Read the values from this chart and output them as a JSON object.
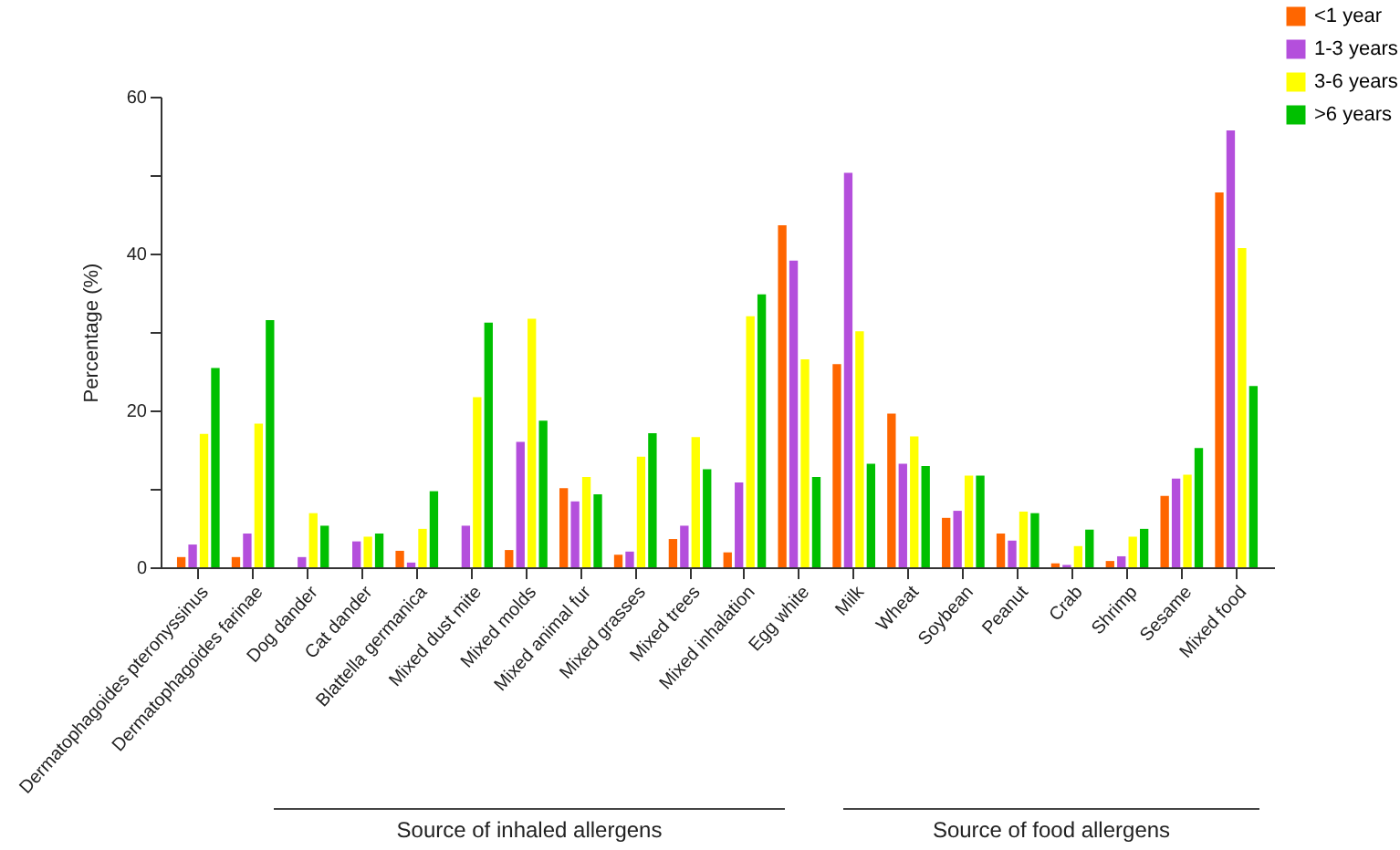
{
  "chart_data": {
    "type": "bar",
    "ylabel": "Percentage (%)",
    "categories": [
      "Dermatophagoides pteronyssinus",
      "Dermatophagoides farinae",
      "Dog dander",
      "Cat dander",
      "Blattella germanica",
      "Mixed dust mite",
      "Mixed molds",
      "Mixed animal fur",
      "Mixed grasses",
      "Mixed trees",
      "Mixed inhalation",
      "Egg white",
      "Milk",
      "Wheat",
      "Soybean",
      "Peanut",
      "Crab",
      "Shrimp",
      "Sesame",
      "Mixed food"
    ],
    "series": [
      {
        "name": "<1 year",
        "color": "#ff6600",
        "values": [
          1.3,
          1.3,
          0,
          0,
          2.1,
          0,
          2.2,
          10.1,
          1.6,
          3.6,
          1.9,
          43.6,
          25.9,
          19.6,
          6.3,
          4.3,
          0.5,
          0.8,
          9.1,
          47.8
        ]
      },
      {
        "name": "1-3 years",
        "color": "#b44fdc",
        "values": [
          2.9,
          4.3,
          1.3,
          3.3,
          0.6,
          5.3,
          16.0,
          8.4,
          2.0,
          5.3,
          10.8,
          39.1,
          50.3,
          13.2,
          7.2,
          3.4,
          0.3,
          1.4,
          11.3,
          55.7
        ]
      },
      {
        "name": "3-6 years",
        "color": "#ffff00",
        "values": [
          17.0,
          18.3,
          6.9,
          3.9,
          4.9,
          21.7,
          31.7,
          11.5,
          14.1,
          16.6,
          32.0,
          26.5,
          30.1,
          16.7,
          11.7,
          7.1,
          2.7,
          3.9,
          11.8,
          40.7
        ]
      },
      {
        "name": ">6 years",
        "color": "#00c000",
        "values": [
          25.4,
          31.5,
          5.3,
          4.3,
          9.7,
          31.2,
          18.7,
          9.3,
          17.1,
          12.5,
          34.8,
          11.5,
          13.2,
          12.9,
          11.7,
          6.9,
          4.8,
          4.9,
          15.2,
          23.1
        ]
      }
    ],
    "ylim": [
      0,
      60
    ],
    "yticks": [
      0,
      {
        "value": 10,
        "label": null
      },
      20,
      {
        "value": 30,
        "label": null
      },
      40,
      {
        "value": 50,
        "label": null
      },
      60
    ],
    "legend": "top right",
    "annotations": [
      "Source of inhaled allergens",
      "Source of food allergens"
    ]
  }
}
